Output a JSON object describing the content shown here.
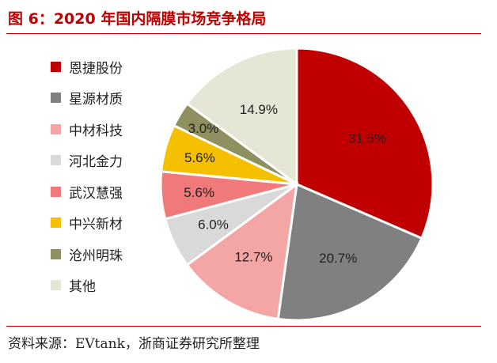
{
  "title": "图 6：2020 年国内隔膜市场竞争格局",
  "source": "资料来源：EVtank，浙商证券研究所整理",
  "colors": {
    "accent": "#c00000"
  },
  "chart_data": {
    "type": "pie",
    "categories": [
      "恩捷股份",
      "星源材质",
      "中材科技",
      "河北金力",
      "武汉慧强",
      "中兴新材",
      "沧州明珠",
      "其他"
    ],
    "values": [
      31.5,
      20.7,
      12.7,
      6.0,
      5.6,
      5.6,
      3.0,
      14.9
    ],
    "labels": [
      "31.5%",
      "20.7%",
      "12.7%",
      "6.0%",
      "5.6%",
      "5.6%",
      "3.0%",
      "14.9%"
    ],
    "colors": [
      "#c00000",
      "#808080",
      "#f4a6a6",
      "#d9d9d9",
      "#f07a7a",
      "#f5c000",
      "#8f8f5f",
      "#e6e6d6"
    ],
    "legend_position": "left",
    "start_angle_deg": 0,
    "direction": "clockwise"
  }
}
